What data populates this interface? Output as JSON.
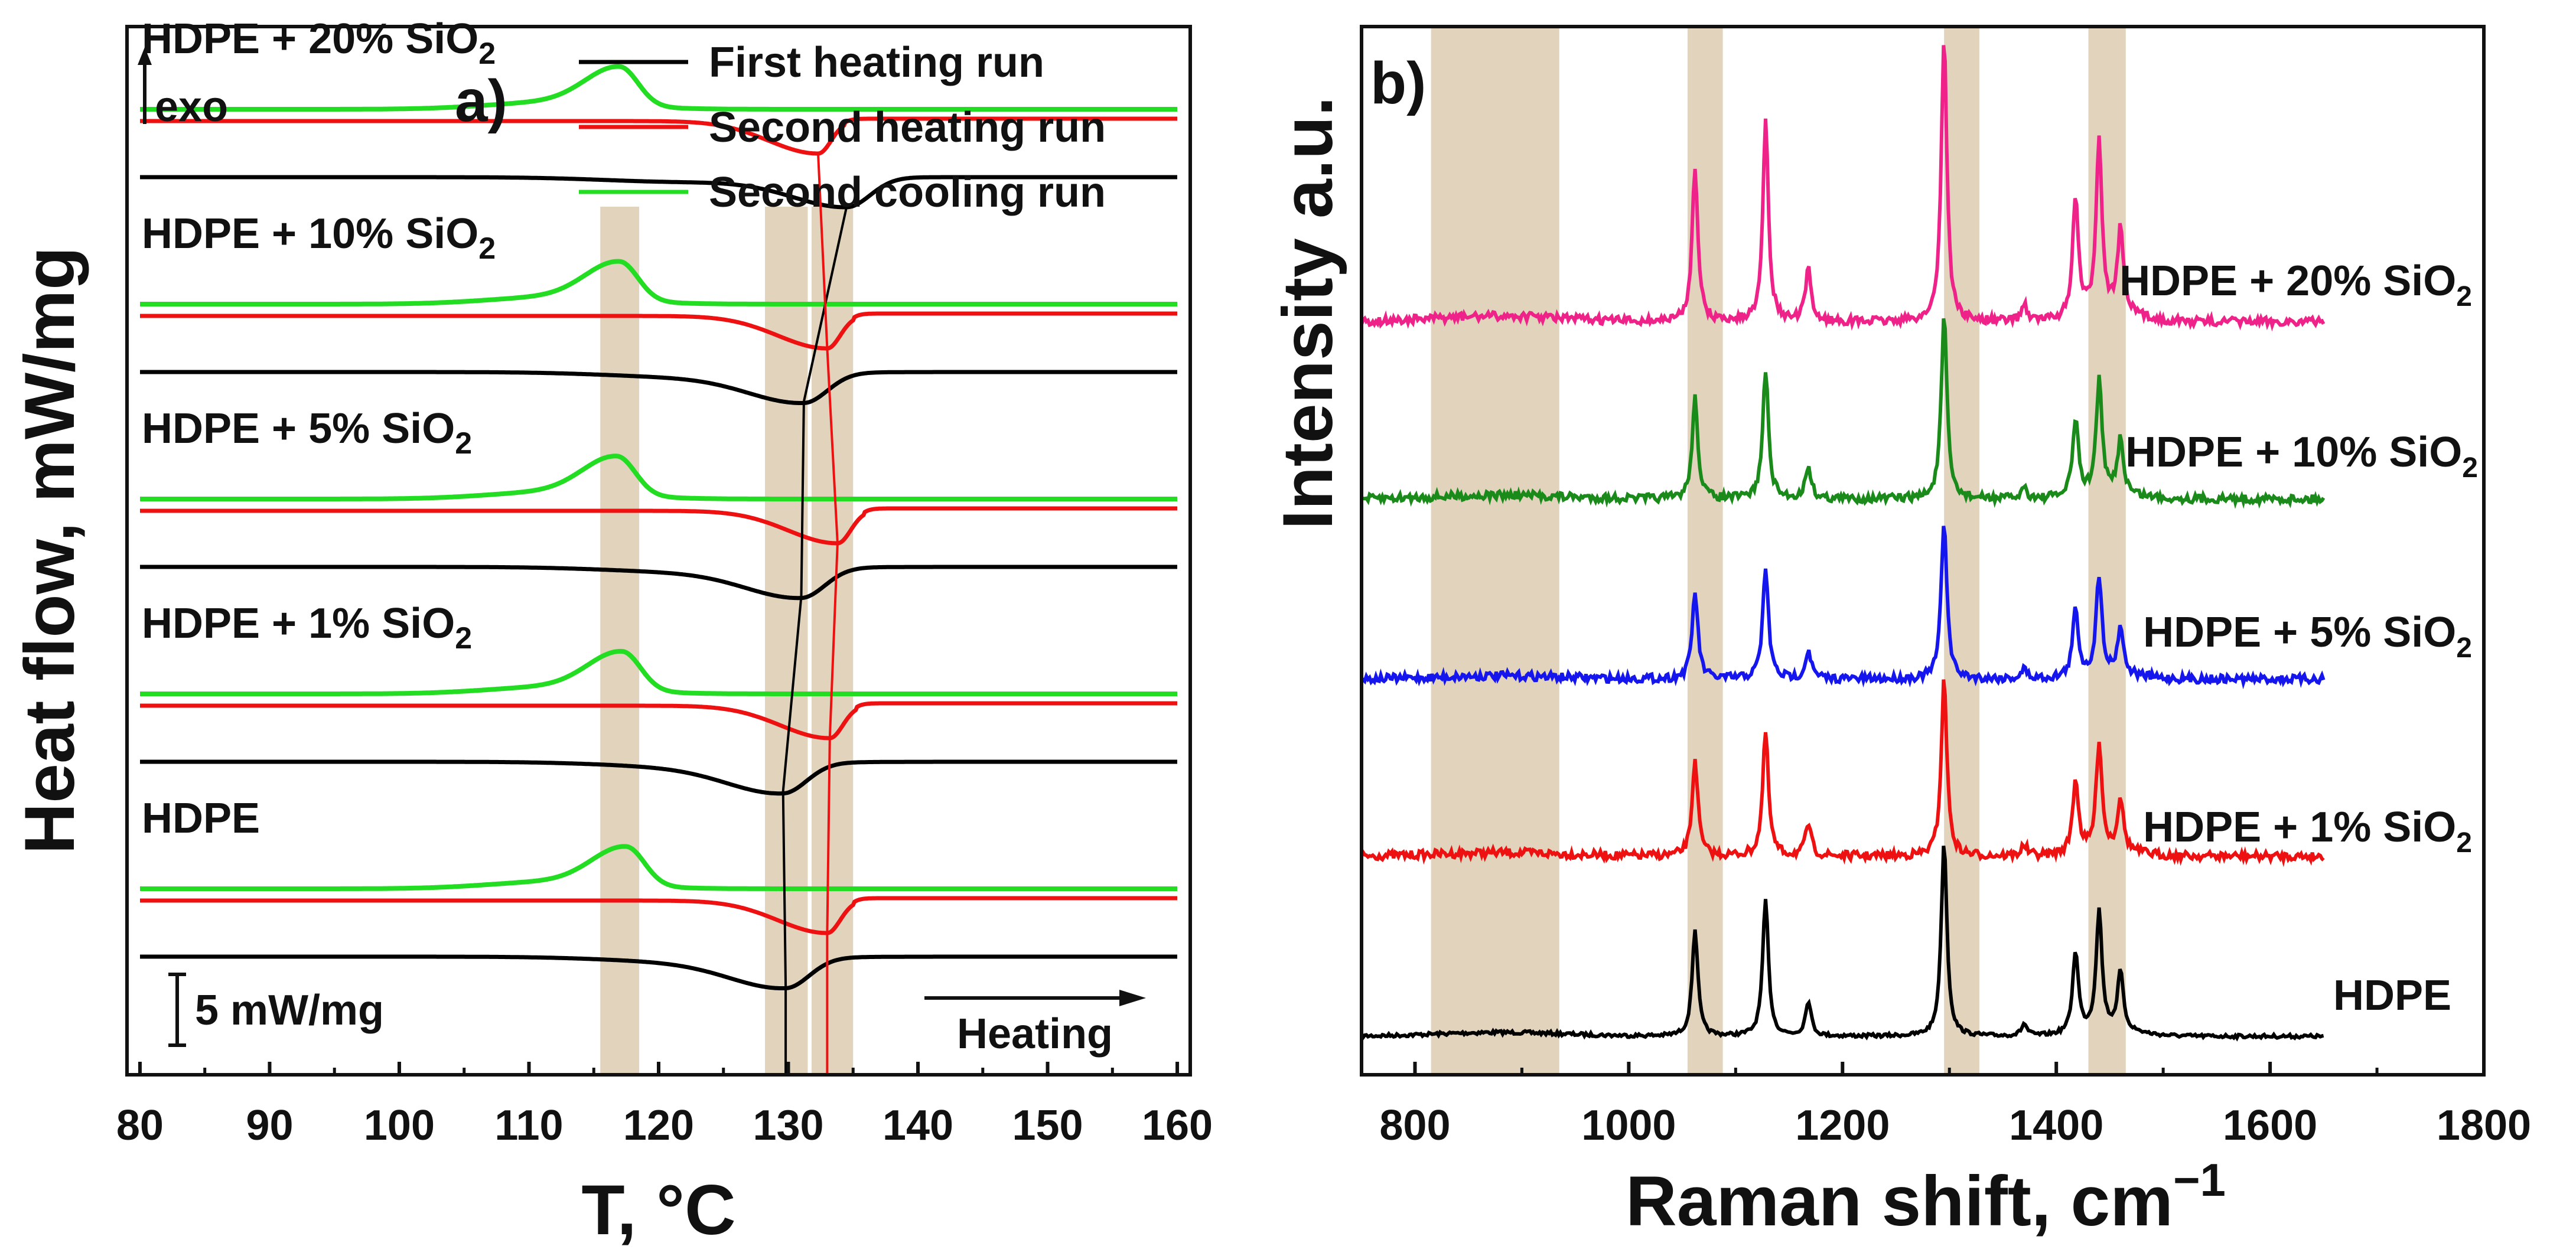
{
  "colors": {
    "first_heating": "#000000",
    "second_heating": "#ee1111",
    "second_cooling": "#22dd22",
    "band": "#e2d3bd",
    "raman_hdpe": "#000000",
    "raman_1": "#ee1111",
    "raman_5": "#1515ee",
    "raman_10": "#1a8a1a",
    "raman_20": "#ee2288"
  },
  "chart_data": [
    {
      "type": "line",
      "panel_label": "a)",
      "title": "",
      "xlabel": "T, °C",
      "ylabel": "Heat flow, mW/mg",
      "xlim": [
        79,
        161
      ],
      "xticks": [
        80,
        90,
        100,
        110,
        120,
        130,
        140,
        150,
        160
      ],
      "exo_label": "exo",
      "scale_bar_label": "5 mW/mg",
      "heating_label": "Heating",
      "legend": [
        {
          "name": "First heating run",
          "color_key": "first_heating"
        },
        {
          "name": "Second heating run",
          "color_key": "second_heating"
        },
        {
          "name": "Second cooling run",
          "color_key": "second_cooling"
        }
      ],
      "bands": [
        [
          115.5,
          118.5
        ],
        [
          128.2,
          131.5
        ],
        [
          131.8,
          135.0
        ]
      ],
      "samples": [
        {
          "name": "HDPE",
          "sub": "",
          "suffix": "",
          "offset": 0,
          "first_heating_min_T": 129.8,
          "second_heating_min_T": 133.0,
          "second_cooling_peak_T": 117.5
        },
        {
          "name": "HDPE + 1% SiO",
          "sub": "2",
          "suffix": "",
          "offset": 1,
          "first_heating_min_T": 129.6,
          "second_heating_min_T": 133.2,
          "second_cooling_peak_T": 117.2
        },
        {
          "name": "HDPE + 5% SiO",
          "sub": "2",
          "suffix": "",
          "offset": 2,
          "first_heating_min_T": 131.0,
          "second_heating_min_T": 133.8,
          "second_cooling_peak_T": 116.8
        },
        {
          "name": "HDPE + 10% SiO",
          "sub": "2",
          "suffix": "",
          "offset": 3,
          "first_heating_min_T": 131.2,
          "second_heating_min_T": 133.0,
          "second_cooling_peak_T": 117.0
        },
        {
          "name": "HDPE + 20% SiO",
          "sub": "2",
          "suffix": "",
          "offset": 4,
          "first_heating_min_T": 134.5,
          "second_heating_min_T": 132.3,
          "second_cooling_peak_T": 117.0
        }
      ]
    },
    {
      "type": "line",
      "panel_label": "b)",
      "title": "",
      "xlabel": "Raman shift, cm",
      "xlabel_sup": "−1",
      "ylabel": "Intensity a.u.",
      "xlim": [
        750,
        1800
      ],
      "xticks": [
        800,
        1000,
        1200,
        1400,
        1600,
        1800
      ],
      "x_range_plotted": [
        750,
        1650
      ],
      "bands": [
        [
          815,
          935
        ],
        [
          1055,
          1088
        ],
        [
          1295,
          1328
        ],
        [
          1430,
          1465
        ]
      ],
      "peaks": [
        {
          "pos": 1062,
          "h": 0.55
        },
        {
          "pos": 1128,
          "h": 0.7
        },
        {
          "pos": 1168,
          "h": 0.18
        },
        {
          "pos": 1295,
          "h": 1.0
        },
        {
          "pos": 1370,
          "h": 0.06
        },
        {
          "pos": 1418,
          "h": 0.42
        },
        {
          "pos": 1440,
          "h": 0.62
        },
        {
          "pos": 1460,
          "h": 0.3
        }
      ],
      "series": [
        {
          "name": "HDPE",
          "sub": "",
          "color_key": "raman_hdpe",
          "offset": 0
        },
        {
          "name": "HDPE + 1% SiO",
          "sub": "2",
          "color_key": "raman_1",
          "offset": 1
        },
        {
          "name": "HDPE + 5% SiO",
          "sub": "2",
          "color_key": "raman_5",
          "offset": 2
        },
        {
          "name": "HDPE + 10% SiO",
          "sub": "2",
          "color_key": "raman_10",
          "offset": 3
        },
        {
          "name": "HDPE + 20% SiO",
          "sub": "2",
          "color_key": "raman_20",
          "offset": 4
        }
      ]
    }
  ]
}
